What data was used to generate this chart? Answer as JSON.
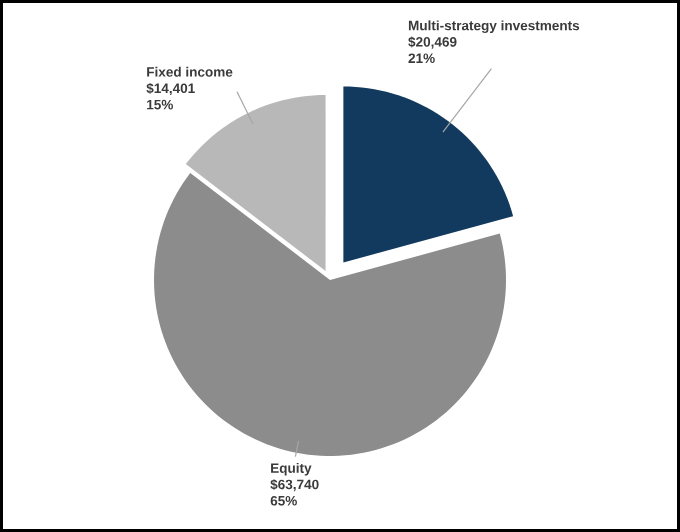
{
  "chart_data": {
    "type": "pie",
    "categories": [
      "Multi-strategy investments",
      "Equity",
      "Fixed income"
    ],
    "values": [
      20469,
      63740,
      14401
    ],
    "colors": [
      "#123a5e",
      "#8c8c8c",
      "#b8b8b8"
    ],
    "value_labels": [
      "$20,469",
      "$63,740",
      "$14,401"
    ],
    "annotations": [
      "21%",
      "65%",
      "15%"
    ]
  }
}
